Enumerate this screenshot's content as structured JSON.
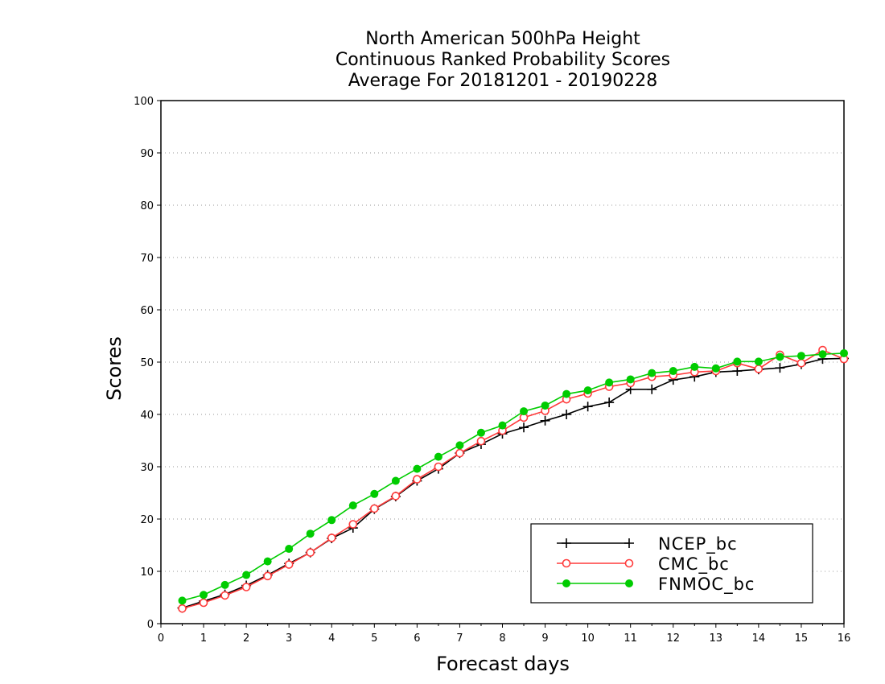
{
  "chart_data": {
    "type": "line",
    "title": [
      "North American 500hPa Height",
      "Continuous Ranked Probability Scores",
      "Average For 20181201 - 20190228"
    ],
    "xlabel": "Forecast days",
    "ylabel": "Scores",
    "xlim": [
      0,
      16
    ],
    "ylim": [
      0,
      100
    ],
    "xticks": [
      "0",
      "1",
      "2",
      "3",
      "4",
      "5",
      "6",
      "7",
      "8",
      "9",
      "10",
      "11",
      "12",
      "13",
      "14",
      "15",
      "16"
    ],
    "yticks": [
      "0",
      "10",
      "20",
      "30",
      "40",
      "50",
      "60",
      "70",
      "80",
      "90",
      "100"
    ],
    "grid": "horizontal dotted",
    "legend_position": "lower-right",
    "x": [
      0.5,
      1,
      1.5,
      2,
      2.5,
      3,
      3.5,
      4,
      4.5,
      5,
      5.5,
      6,
      6.5,
      7,
      7.5,
      8,
      8.5,
      9,
      9.5,
      10,
      10.5,
      11,
      11.5,
      12,
      12.5,
      13,
      13.5,
      14,
      14.5,
      15,
      15.5,
      16
    ],
    "series": [
      {
        "name": "NCEP_bc",
        "color": "#000000",
        "marker": "plus",
        "values": [
          3.0,
          4.3,
          5.6,
          7.3,
          9.3,
          11.5,
          13.6,
          16.3,
          18.3,
          21.9,
          24.3,
          27.3,
          29.6,
          32.6,
          34.3,
          36.3,
          37.5,
          38.8,
          40.0,
          41.5,
          42.3,
          44.8,
          44.8,
          46.6,
          47.2,
          48.1,
          48.3,
          48.6,
          48.9,
          49.6,
          50.6,
          50.7
        ]
      },
      {
        "name": "CMC_bc",
        "color": "#ff3b3b",
        "marker": "open-circle",
        "values": [
          2.9,
          4.0,
          5.4,
          7.0,
          9.1,
          11.3,
          13.6,
          16.4,
          19.0,
          22.0,
          24.4,
          27.6,
          30.0,
          32.6,
          34.9,
          36.9,
          39.4,
          40.7,
          42.9,
          44.0,
          45.3,
          46.0,
          47.2,
          47.5,
          48.1,
          48.3,
          49.8,
          48.7,
          51.4,
          49.8,
          52.3,
          50.6
        ]
      },
      {
        "name": "FNMOC_bc",
        "color": "#00cc00",
        "marker": "filled-circle",
        "values": [
          4.4,
          5.5,
          7.4,
          9.3,
          11.9,
          14.3,
          17.2,
          19.8,
          22.6,
          24.8,
          27.3,
          29.6,
          31.9,
          34.1,
          36.5,
          37.9,
          40.6,
          41.7,
          43.9,
          44.6,
          46.1,
          46.7,
          47.9,
          48.3,
          49.1,
          48.8,
          50.1,
          50.1,
          51.0,
          51.2,
          51.5,
          51.7
        ]
      }
    ]
  }
}
